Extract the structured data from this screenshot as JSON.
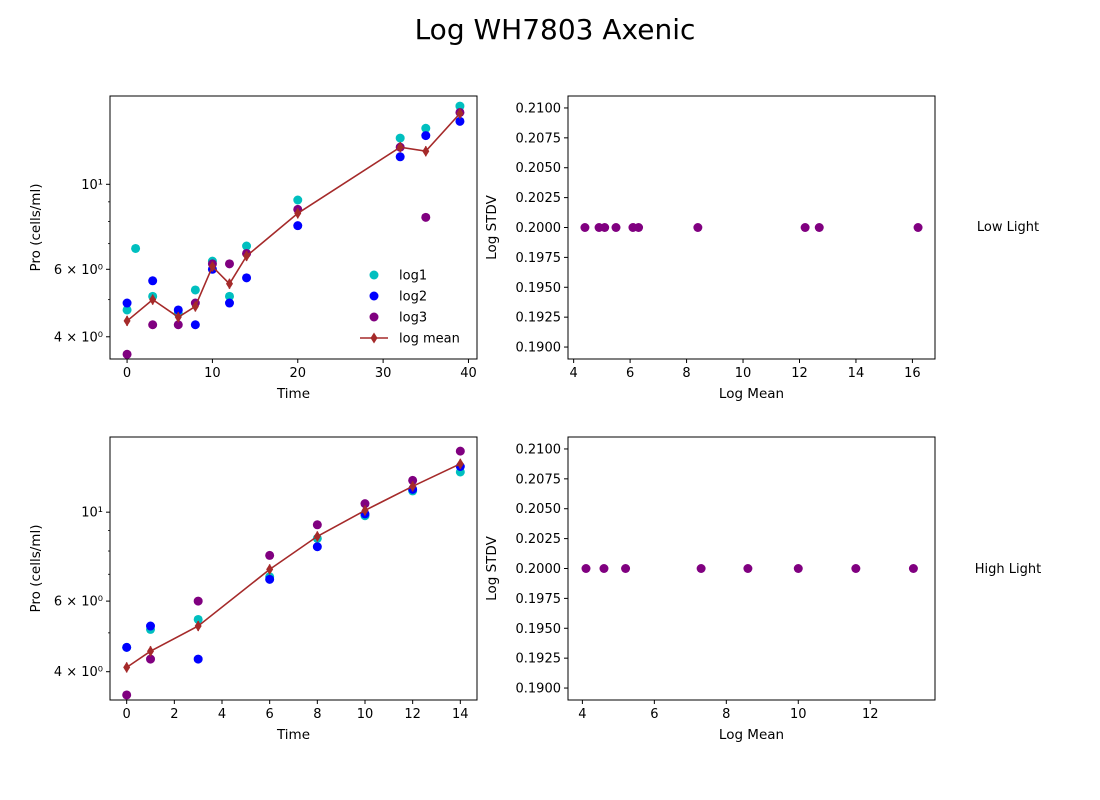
{
  "figure_title": "Log WH7803 Axenic",
  "colors": {
    "log1": "#00bfbf",
    "log2": "#0000ff",
    "log3": "#800080",
    "mean": "#a52a2a",
    "stdv": "#800080"
  },
  "chart_data": [
    {
      "id": "growth-low",
      "type": "scatter",
      "yscale": "log",
      "xlabel": "Time",
      "ylabel": "Pro (cells/ml)",
      "xlim": [
        -2,
        41
      ],
      "ylim": [
        3.5,
        17
      ],
      "xticks": [
        0,
        10,
        20,
        30,
        40
      ],
      "xticklabels": [
        "0",
        "10",
        "20",
        "30",
        "40"
      ],
      "yticks": [
        4,
        6,
        10
      ],
      "yticklabels": [
        "4 × 10⁰",
        "6 × 10⁰",
        "10¹"
      ],
      "minor_yticks": [
        5,
        7,
        8,
        9
      ],
      "legend": {
        "loc": "lower-right",
        "entries": [
          "log1",
          "log2",
          " log3",
          "log mean"
        ]
      },
      "series": [
        {
          "name": "log1",
          "x": [
            0,
            1,
            3,
            6,
            8,
            10,
            12,
            14,
            20,
            32,
            35,
            39
          ],
          "y": [
            4.7,
            6.8,
            5.1,
            4.6,
            5.3,
            6.3,
            5.1,
            6.9,
            9.1,
            13.2,
            14.0,
            16.0
          ]
        },
        {
          "name": "log2",
          "x": [
            0,
            3,
            6,
            8,
            10,
            12,
            14,
            20,
            32,
            35,
            39
          ],
          "y": [
            4.9,
            5.6,
            4.7,
            4.3,
            6.0,
            4.9,
            5.7,
            7.8,
            11.8,
            13.4,
            14.6
          ]
        },
        {
          "name": " log3",
          "x": [
            0,
            3,
            6,
            8,
            10,
            12,
            14,
            20,
            32,
            35,
            39
          ],
          "y": [
            3.6,
            4.3,
            4.3,
            4.9,
            6.2,
            6.2,
            6.6,
            8.6,
            12.5,
            8.2,
            15.4
          ]
        },
        {
          "name": "log mean",
          "x": [
            0,
            3,
            6,
            8,
            10,
            12,
            14,
            20,
            32,
            35,
            39
          ],
          "y": [
            4.4,
            5.0,
            4.5,
            4.8,
            6.1,
            5.5,
            6.5,
            8.4,
            12.5,
            12.2,
            15.3
          ]
        }
      ]
    },
    {
      "id": "stdv-low",
      "type": "scatter",
      "xlabel": "Log Mean",
      "ylabel": "Log STDV",
      "xlim": [
        3.8,
        16.8
      ],
      "ylim": [
        0.189,
        0.211
      ],
      "xticks": [
        4,
        6,
        8,
        10,
        12,
        14,
        16
      ],
      "xticklabels": [
        "4",
        "6",
        "8",
        "10",
        "12",
        "14",
        "16"
      ],
      "yticks": [
        0.19,
        0.1925,
        0.195,
        0.1975,
        0.2,
        0.2025,
        0.205,
        0.2075,
        0.21
      ],
      "yticklabels": [
        "0.1900",
        "0.1925",
        "0.1950",
        "0.1975",
        "0.2000",
        "0.2025",
        "0.2050",
        "0.2075",
        "0.2100"
      ],
      "side_label": "Low Light",
      "series": [
        {
          "x": [
            4.4,
            4.9,
            5.1,
            5.5,
            6.1,
            6.3,
            8.4,
            12.2,
            12.7,
            16.2
          ],
          "y": [
            0.2,
            0.2,
            0.2,
            0.2,
            0.2,
            0.2,
            0.2,
            0.2,
            0.2,
            0.2
          ]
        }
      ]
    },
    {
      "id": "growth-high",
      "type": "scatter",
      "yscale": "log",
      "xlabel": "Time",
      "ylabel": "Pro (cells/ml)",
      "xlim": [
        -0.7,
        14.7
      ],
      "ylim": [
        3.4,
        15.4
      ],
      "xticks": [
        0,
        2,
        4,
        6,
        8,
        10,
        12,
        14
      ],
      "xticklabels": [
        "0",
        "2",
        "4",
        "6",
        "8",
        "10",
        "12",
        "14"
      ],
      "yticks": [
        4,
        6,
        10
      ],
      "yticklabels": [
        "4 × 10⁰",
        "6 × 10⁰",
        "10¹"
      ],
      "minor_yticks": [
        5,
        7,
        8,
        9
      ],
      "series": [
        {
          "name": "log1",
          "x": [
            0,
            1,
            3,
            6,
            8,
            10,
            12,
            14
          ],
          "y": [
            4.6,
            5.1,
            5.4,
            6.9,
            8.6,
            9.8,
            11.3,
            12.6
          ]
        },
        {
          "name": "log2",
          "x": [
            0,
            1,
            3,
            6,
            8,
            10,
            12,
            14
          ],
          "y": [
            4.6,
            5.2,
            4.3,
            6.8,
            8.2,
            9.9,
            11.4,
            13.0
          ]
        },
        {
          "name": " log3",
          "x": [
            0,
            1,
            3,
            6,
            8,
            10,
            12,
            14
          ],
          "y": [
            3.5,
            4.3,
            6.0,
            7.8,
            9.3,
            10.5,
            12.0,
            14.2
          ]
        },
        {
          "name": "log mean",
          "x": [
            0,
            1,
            3,
            6,
            8,
            10,
            12,
            14
          ],
          "y": [
            4.1,
            4.5,
            5.2,
            7.2,
            8.7,
            10.1,
            11.6,
            13.2
          ]
        }
      ]
    },
    {
      "id": "stdv-high",
      "type": "scatter",
      "xlabel": "Log Mean",
      "ylabel": "Log STDV",
      "xlim": [
        3.6,
        13.8
      ],
      "ylim": [
        0.189,
        0.211
      ],
      "xticks": [
        4,
        6,
        8,
        10,
        12
      ],
      "xticklabels": [
        "4",
        "6",
        "8",
        "10",
        "12"
      ],
      "yticks": [
        0.19,
        0.1925,
        0.195,
        0.1975,
        0.2,
        0.2025,
        0.205,
        0.2075,
        0.21
      ],
      "yticklabels": [
        "0.1900",
        "0.1925",
        "0.1950",
        "0.1975",
        "0.2000",
        "0.2025",
        "0.2050",
        "0.2075",
        "0.2100"
      ],
      "side_label": "High Light",
      "series": [
        {
          "x": [
            4.1,
            4.6,
            5.2,
            7.3,
            8.6,
            10.0,
            11.6,
            13.2
          ],
          "y": [
            0.2,
            0.2,
            0.2,
            0.2,
            0.2,
            0.2,
            0.2,
            0.2
          ]
        }
      ]
    }
  ]
}
